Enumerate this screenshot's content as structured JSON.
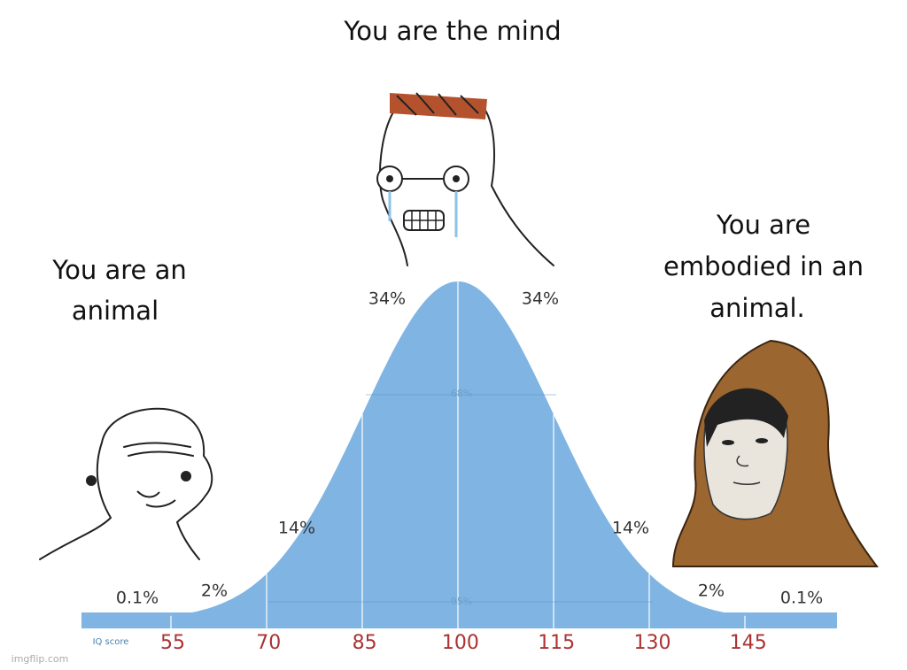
{
  "captions": {
    "top": "You are the mind",
    "left": [
      "You are an",
      "animal"
    ],
    "right": [
      "You are",
      "embodied in an",
      "animal."
    ]
  },
  "curve": {
    "percent_labels": [
      "0.1%",
      "2%",
      "14%",
      "34%",
      "34%",
      "14%",
      "2%",
      "0.1%"
    ],
    "inner_labels": [
      "68%",
      "95%"
    ],
    "axis_label": "IQ score",
    "ticks": [
      55,
      70,
      85,
      100,
      115,
      130,
      145
    ]
  },
  "watermark": "imgflip.com"
}
